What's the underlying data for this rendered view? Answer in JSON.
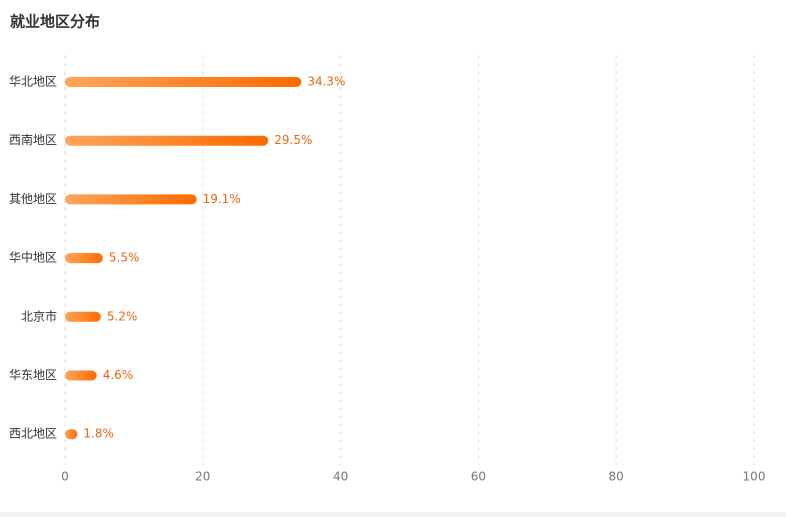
{
  "chart_data": {
    "type": "hbar",
    "title": "就业地区分布",
    "categories": [
      "华北地区",
      "西南地区",
      "其他地区",
      "华中地区",
      "北京市",
      "华东地区",
      "西北地区"
    ],
    "values": [
      34.3,
      29.5,
      19.1,
      5.5,
      5.2,
      4.6,
      1.8
    ],
    "value_labels": [
      "34.3%",
      "29.5%",
      "19.1%",
      "5.5%",
      "5.2%",
      "4.6%",
      "1.8%"
    ],
    "color": "#ff6a00",
    "xlim": [
      0,
      100
    ],
    "xticks": [
      0,
      20,
      40,
      60,
      80,
      100
    ],
    "grid": true
  }
}
